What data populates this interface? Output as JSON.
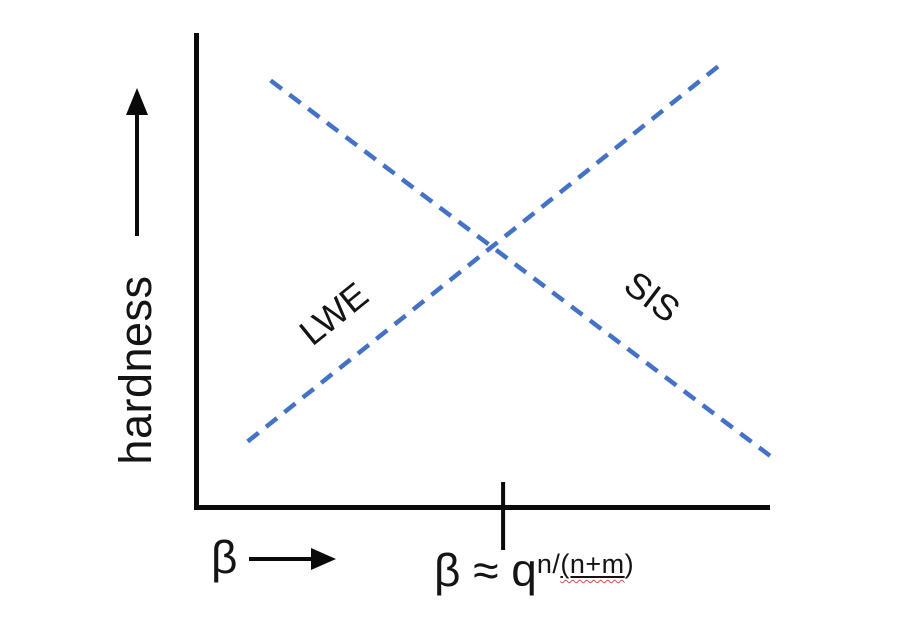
{
  "chart_data": {
    "type": "line",
    "title": "",
    "xlabel": "β",
    "ylabel": "hardness",
    "axes": {
      "x_range": [
        0,
        1
      ],
      "y_range": [
        0,
        1
      ],
      "numeric_ticks": false,
      "grid": false,
      "style": "schematic axes with direction arrows, qualitative (no numeric scale)"
    },
    "series": [
      {
        "name": "LWE",
        "style": "dashed",
        "color": "#4472C4",
        "x": [
          0.09,
          0.91
        ],
        "y": [
          0.14,
          0.93
        ]
      },
      {
        "name": "SIS",
        "style": "dashed",
        "color": "#4472C4",
        "x": [
          0.13,
          1.0
        ],
        "y": [
          0.9,
          0.11
        ]
      }
    ],
    "crossover": {
      "x": 0.51,
      "y": 0.55
    },
    "x_annotation": {
      "x": 0.535,
      "label_text": "β ≈ q^(n/(n+m))",
      "base": "β ≈ q",
      "sup_before": "n/",
      "sup_underlined": "(n+m",
      "sup_after": ")"
    },
    "legend": "none (series names drawn rotated along the lines)"
  },
  "colors": {
    "axis": "#0a0a0a",
    "line": "#4472C4",
    "annotation_underline": "#141414",
    "spellcheck_squiggle": "#d24b4b"
  }
}
